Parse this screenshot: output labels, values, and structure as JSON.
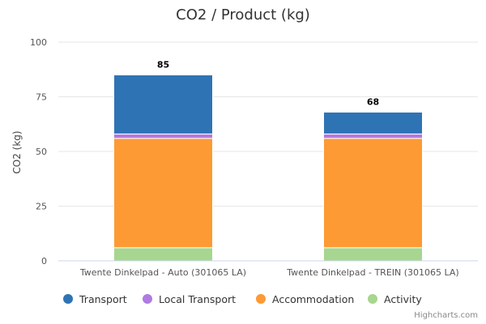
{
  "chart_data": {
    "type": "bar",
    "stacked": true,
    "title": "CO2 / Product (kg)",
    "xlabel": "",
    "ylabel": "CO2 (kg)",
    "ylim": [
      0,
      100
    ],
    "yticks": [
      0,
      25,
      50,
      75,
      100
    ],
    "grid": true,
    "legend_position": "bottom",
    "categories": [
      "Twente Dinkelpad - Auto (301065 LA)",
      "Twente Dinkelpad - TREIN (301065 LA)"
    ],
    "totals": [
      85,
      68
    ],
    "series": [
      {
        "name": "Activity",
        "color": "#a6d68f",
        "values": [
          6,
          6
        ]
      },
      {
        "name": "Accommodation",
        "color": "#fd9a34",
        "values": [
          50,
          50
        ]
      },
      {
        "name": "Local Transport",
        "color": "#b07ae3",
        "values": [
          2,
          2
        ]
      },
      {
        "name": "Transport",
        "color": "#2e74b5",
        "values": [
          27,
          10
        ]
      }
    ],
    "legend_order": [
      "Transport",
      "Local Transport",
      "Accommodation",
      "Activity"
    ]
  },
  "credits": "Highcharts.com"
}
